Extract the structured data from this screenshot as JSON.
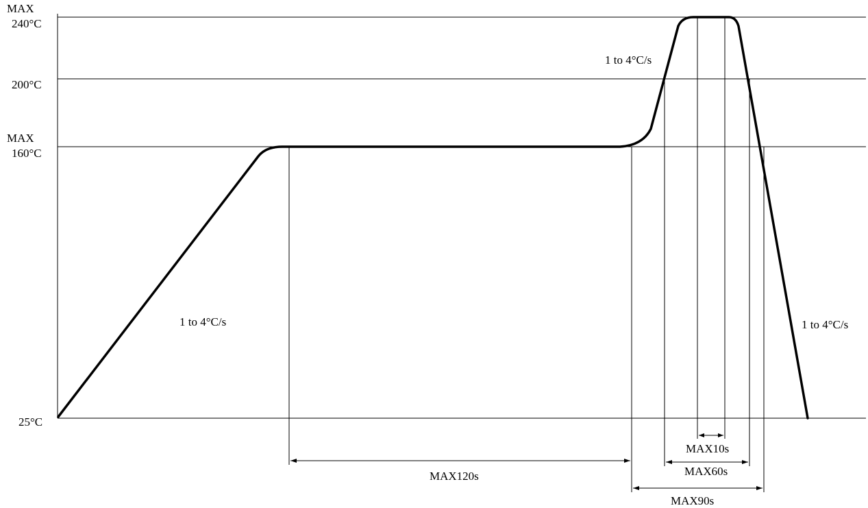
{
  "y_axis": {
    "max_240": {
      "line1": "MAX",
      "line2": "240°C"
    },
    "label_200": "200°C",
    "max_160": {
      "line1": "MAX",
      "line2": "160°C"
    },
    "label_25": "25°C"
  },
  "rates": {
    "ramp_up": "1 to 4°C/s",
    "reflow_ramp": "1 to 4°C/s",
    "cool_down": "1 to 4°C/s"
  },
  "durations": {
    "preheat": "MAX120s",
    "peak": "MAX10s",
    "above_200": "MAX60s",
    "above_160": "MAX90s"
  },
  "profile_points_celsius": {
    "start": 25,
    "preheat_plateau": 160,
    "reflow_threshold": 200,
    "peak": 240,
    "end": 25
  }
}
